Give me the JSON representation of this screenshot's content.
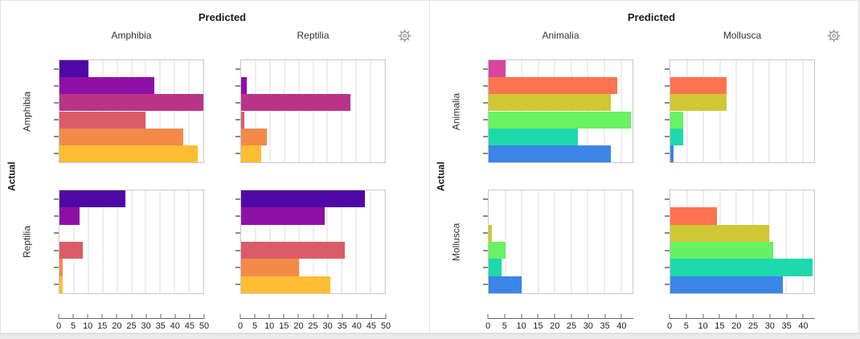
{
  "icons": {
    "settings": "gear"
  },
  "accent_border_color": "#e4e4e4",
  "chart_data": [
    {
      "type": "bar",
      "orientation": "horizontal",
      "title": "Predicted",
      "actual_label": "Actual",
      "columns": [
        "Amphibia",
        "Reptilia"
      ],
      "rows": [
        "Amphibia",
        "Reptilia"
      ],
      "legend_position": "none",
      "grid": true,
      "colors": [
        "#4e09a5",
        "#8f10a6",
        "#b93487",
        "#db5c68",
        "#f38a4a",
        "#febd32"
      ],
      "axis": {
        "label": "",
        "min": 0,
        "max": 50,
        "domain_max": 50,
        "ticks": [
          0,
          5,
          10,
          15,
          20,
          25,
          30,
          35,
          40,
          45,
          50
        ]
      },
      "cells": [
        [
          [
            10,
            33,
            50,
            30,
            43,
            48
          ],
          [
            0,
            2,
            38,
            1,
            9,
            7
          ]
        ],
        [
          [
            23,
            7,
            0,
            8,
            1,
            1
          ],
          [
            43,
            29,
            0,
            36,
            20,
            31
          ]
        ]
      ]
    },
    {
      "type": "bar",
      "orientation": "horizontal",
      "title": "Predicted",
      "actual_label": "Actual",
      "columns": [
        "Animalia",
        "Mollusca"
      ],
      "rows": [
        "Animalia",
        "Mollusca"
      ],
      "legend_position": "none",
      "grid": true,
      "colors": [
        "#d844a0",
        "#fb7350",
        "#d0c735",
        "#68f162",
        "#1ed9ac",
        "#3c85e8"
      ],
      "axis": {
        "label": "",
        "min": 0,
        "max": 40,
        "domain_max": 43.5,
        "ticks": [
          0,
          5,
          10,
          15,
          20,
          25,
          30,
          35,
          40
        ]
      },
      "cells": [
        [
          [
            5,
            39,
            37,
            43,
            27,
            37
          ],
          [
            0,
            17,
            17,
            4,
            4,
            1
          ]
        ],
        [
          [
            0,
            0,
            1,
            5,
            4,
            10
          ],
          [
            0,
            14,
            30,
            31,
            43,
            34
          ]
        ]
      ]
    }
  ]
}
